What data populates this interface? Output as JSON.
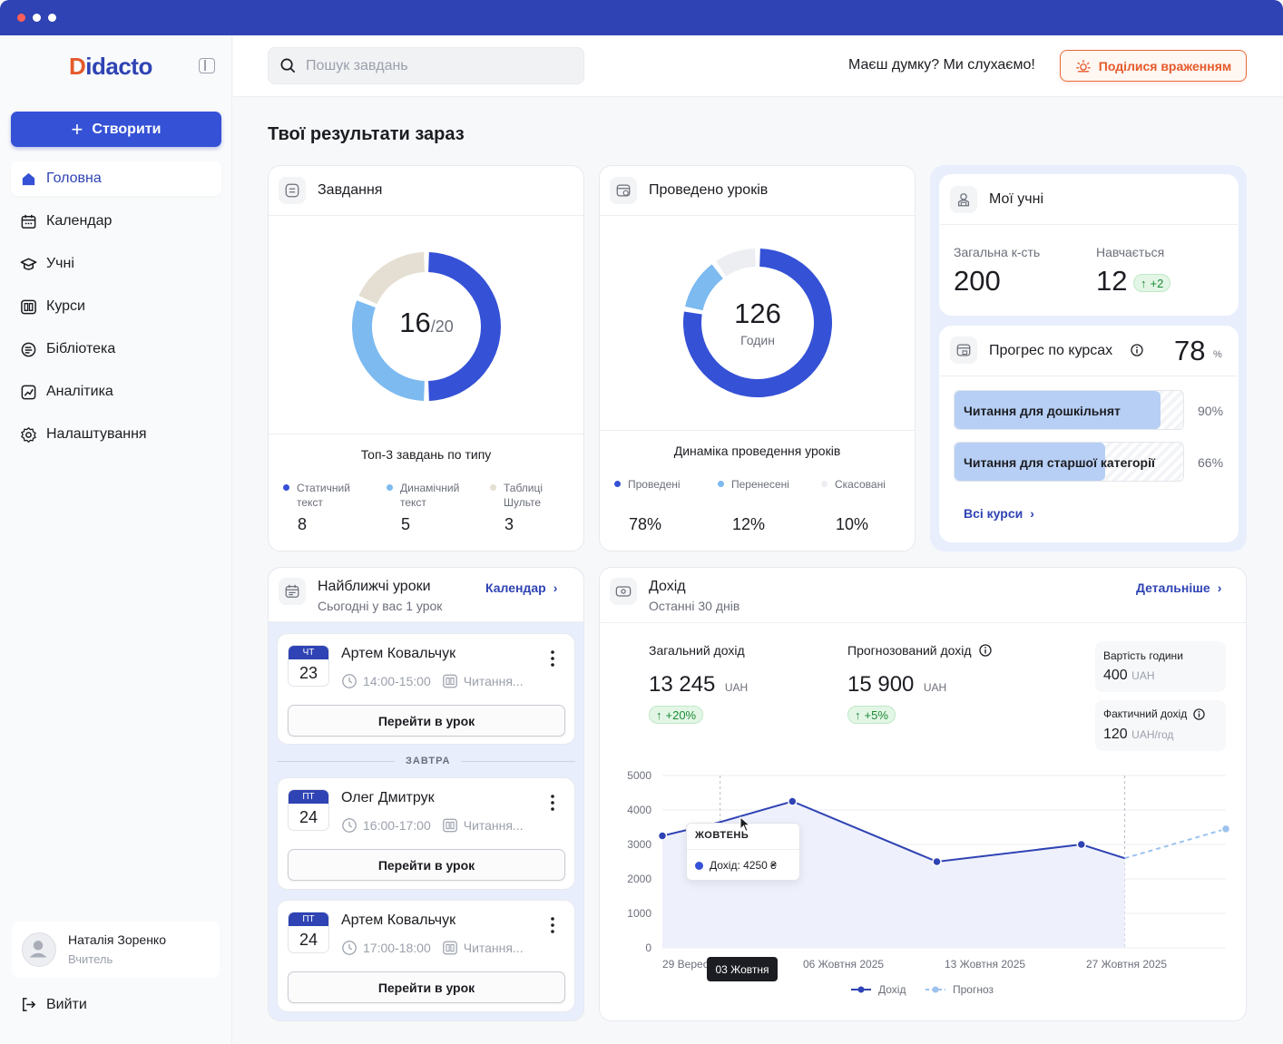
{
  "app": {
    "logo": "Didacto"
  },
  "sidebar": {
    "create_label": "Створити",
    "items": [
      {
        "label": "Головна",
        "icon": "home-icon",
        "active": true
      },
      {
        "label": "Календар",
        "icon": "calendar-icon"
      },
      {
        "label": "Учні",
        "icon": "graduation-cap-icon"
      },
      {
        "label": "Курси",
        "icon": "book-icon"
      },
      {
        "label": "Бібліотека",
        "icon": "library-icon"
      },
      {
        "label": "Аналітика",
        "icon": "analytics-icon"
      },
      {
        "label": "Налаштування",
        "icon": "gear-icon"
      }
    ],
    "user": {
      "name": "Наталія Зоренко",
      "role": "Вчитель"
    },
    "logout_label": "Вийти"
  },
  "header": {
    "search_placeholder": "Пошук завдань",
    "feedback_question": "Маєш думку? Ми слухаємо!",
    "feedback_button": "Поділися враженням"
  },
  "main": {
    "title": "Твої результати зараз"
  },
  "tasks": {
    "title": "Завдання",
    "done": "16",
    "total": "/20",
    "breakdown_title": "Топ-3 завдань по типу",
    "types": [
      {
        "label1": "Статичний",
        "label2": "текст",
        "value": "8",
        "color": "#3551d6"
      },
      {
        "label1": "Динамічний",
        "label2": "текст",
        "value": "5",
        "color": "#7cbaf0"
      },
      {
        "label1": "Таблиці",
        "label2": "Шульте",
        "value": "3",
        "color": "#e4dfd2"
      }
    ]
  },
  "lessons_done": {
    "title": "Проведено уроків",
    "value": "126",
    "unit": "Годин",
    "breakdown_title": "Динаміка проведення уроків",
    "types": [
      {
        "label": "Проведені",
        "value": "78%",
        "color": "#3551d6"
      },
      {
        "label": "Перенесені",
        "value": "12%",
        "color": "#7cbaf0"
      },
      {
        "label": "Скасовані",
        "value": "10%",
        "color": "#eceef1"
      }
    ]
  },
  "students": {
    "title": "Мої учні",
    "total_label": "Загальна к-сть",
    "total_value": "200",
    "studying_label": "Навчається",
    "studying_value": "12",
    "studying_delta": "+2"
  },
  "course_progress": {
    "title": "Прогрес по курсах",
    "value": "78",
    "unit": "%",
    "courses": [
      {
        "name": "Читання для дошкільнят",
        "pct_label": "90%",
        "progress": 0.9
      },
      {
        "name": "Читання для старшої категорії",
        "pct_label": "66%",
        "progress": 0.66
      }
    ],
    "all_link": "Всі курси"
  },
  "upcoming": {
    "title": "Найближчі уроки",
    "subtitle": "Сьогодні у вас 1 урок",
    "calendar_link": "Календар",
    "divider_label": "ЗАВТРА",
    "go_label": "Перейти в урок",
    "lessons": [
      {
        "day": "ЧТ",
        "date": "23",
        "student": "Артем Ковальчук",
        "time": "14:00-15:00",
        "course": "Читання..."
      },
      {
        "day": "ПТ",
        "date": "24",
        "student": "Олег Дмитрук",
        "time": "16:00-17:00",
        "course": "Читання..."
      },
      {
        "day": "ПТ",
        "date": "24",
        "student": "Артем Ковальчук",
        "time": "17:00-18:00",
        "course": "Читання..."
      }
    ]
  },
  "income": {
    "title": "Дохід",
    "subtitle": "Останні 30 днів",
    "details_link": "Детальніше",
    "total_label": "Загальний дохід",
    "total_value": "13 245",
    "total_unit": "UAH",
    "total_delta": "+20%",
    "forecast_label": "Прогнозований дохід",
    "forecast_value": "15 900",
    "forecast_unit": "UAH",
    "forecast_delta": "+5%",
    "hour_cost_label": "Вартість години",
    "hour_cost_value": "400",
    "hour_cost_unit": "UAH",
    "actual_label": "Фактичний дохід",
    "actual_value": "120",
    "actual_unit": "UAH/год"
  },
  "chart_data": {
    "type": "line",
    "y_ticks": [
      "5000",
      "4000",
      "3000",
      "2000",
      "1000",
      "0"
    ],
    "ylim": [
      0,
      5000
    ],
    "x_labels": [
      "29 Вересня 2025",
      "06 Жовтня 2025",
      "13 Жовтня 2025",
      "27 Жовтня 2025"
    ],
    "grid": true,
    "legend": "bottom",
    "series": [
      {
        "name": "Дохід",
        "color": "#2f43b4",
        "points": [
          {
            "x": "2025-09-29",
            "y": 3250
          },
          {
            "x": "2025-10-03",
            "y": 3650
          },
          {
            "x": "2025-10-08",
            "y": 4250
          },
          {
            "x": "2025-10-18",
            "y": 2500
          },
          {
            "x": "2025-10-28",
            "y": 3000
          },
          {
            "x": "2025-10-31",
            "y": 2600
          }
        ]
      },
      {
        "name": "Прогноз",
        "color": "#9cc2ee",
        "points": [
          {
            "x": "2025-10-31",
            "y": 2600
          },
          {
            "x": "2025-11-07",
            "y": 3450
          }
        ]
      }
    ],
    "tooltip": {
      "title": "ЖОВТЕНЬ",
      "text": "Дохід: 4250 ₴"
    },
    "crosshair_label": "03 Жовтня"
  }
}
